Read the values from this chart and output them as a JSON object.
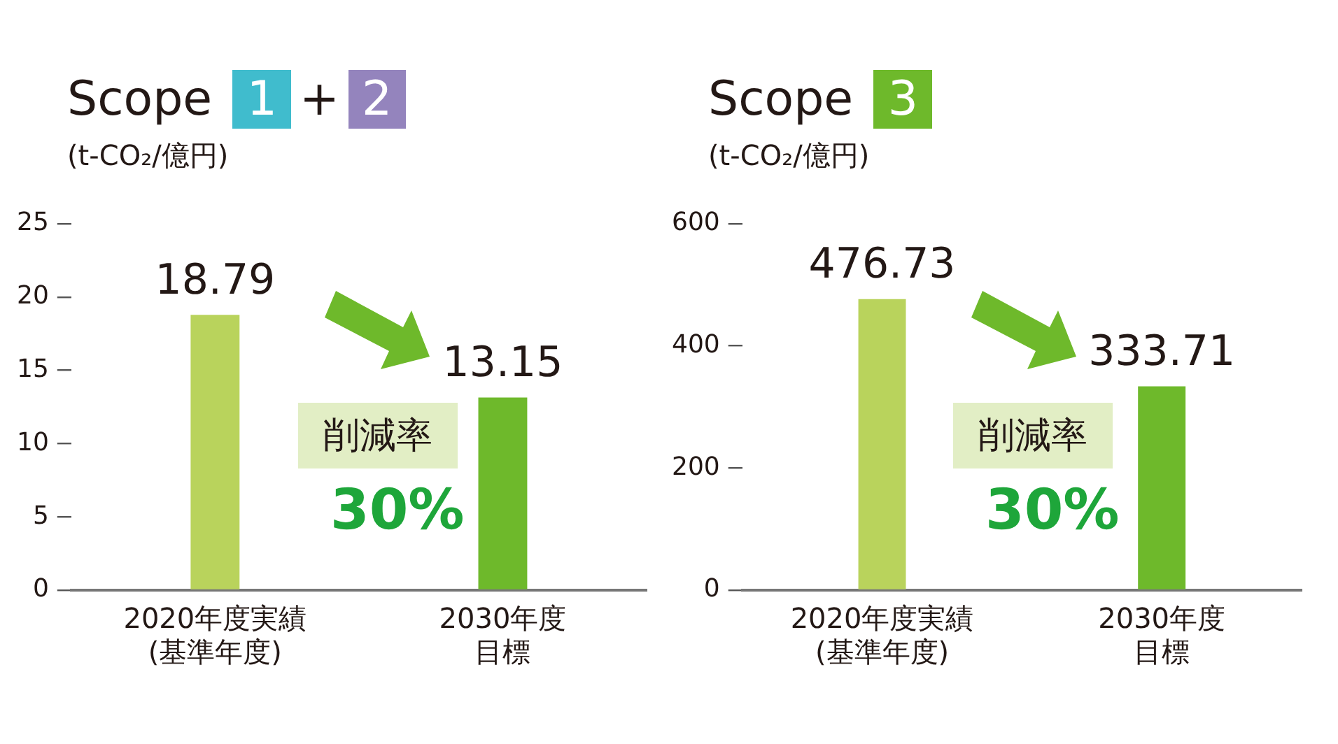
{
  "chart_data": [
    {
      "type": "bar",
      "title": "Scope 1 + 2",
      "ylabel": "(t-CO₂/億円)",
      "categories": [
        "2020年度実績(基準年度)",
        "2030年度目標"
      ],
      "values": [
        18.79,
        13.15
      ],
      "colors": [
        "#b9d35c",
        "#6eb92b"
      ],
      "ylim": [
        0,
        25
      ],
      "yticks": [
        0,
        5,
        10,
        15,
        20,
        25
      ],
      "grid": false,
      "data_labels": true,
      "annotations": [
        "削減率",
        "30%"
      ]
    },
    {
      "type": "bar",
      "title": "Scope 3",
      "ylabel": "(t-CO₂/億円)",
      "categories": [
        "2020年度実績(基準年度)",
        "2030年度目標"
      ],
      "values": [
        476.73,
        333.71
      ],
      "colors": [
        "#b9d35c",
        "#6eb92b"
      ],
      "ylim": [
        0,
        600
      ],
      "yticks": [
        0,
        200,
        400,
        600
      ],
      "grid": false,
      "data_labels": true,
      "annotations": [
        "削減率",
        "30%"
      ]
    }
  ]
}
